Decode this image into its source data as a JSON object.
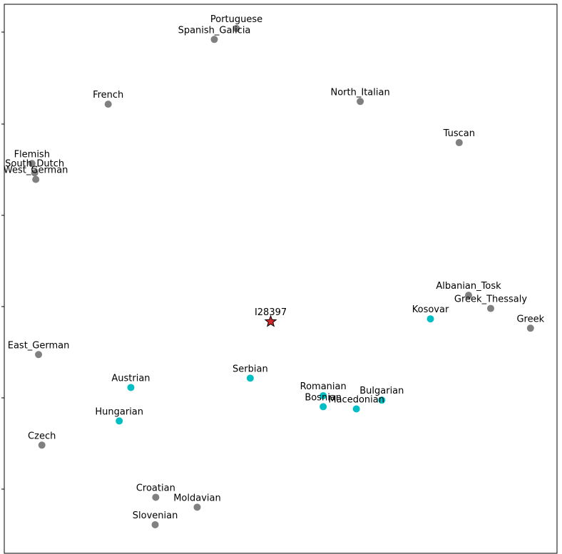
{
  "chart_data": {
    "type": "scatter",
    "title": "",
    "xlabel": "",
    "ylabel": "",
    "xlim": [
      0,
      100
    ],
    "ylim": [
      0,
      100
    ],
    "grid": false,
    "axis_tick_labels_shown": false,
    "colors": {
      "reference": "#808080",
      "highlight": "#00bfc4",
      "target_fill": "#d62728",
      "target_edge": "#000000"
    },
    "points": [
      {
        "label": "Portuguese",
        "x": 42.0,
        "y": 95.6,
        "group": "reference"
      },
      {
        "label": "Spanish_Galicia",
        "x": 38.0,
        "y": 93.6,
        "group": "reference"
      },
      {
        "label": "French",
        "x": 18.8,
        "y": 81.8,
        "group": "reference"
      },
      {
        "label": "North_Italian",
        "x": 64.4,
        "y": 82.3,
        "group": "reference"
      },
      {
        "label": "Tuscan",
        "x": 82.3,
        "y": 74.8,
        "group": "reference"
      },
      {
        "label": "Flemish",
        "x": 5.0,
        "y": 71.0,
        "group": "reference"
      },
      {
        "label": "South_Dutch",
        "x": 5.5,
        "y": 69.3,
        "group": "reference"
      },
      {
        "label": "West_German",
        "x": 5.7,
        "y": 68.1,
        "group": "reference"
      },
      {
        "label": "Albanian_Tosk",
        "x": 84.0,
        "y": 47.0,
        "group": "reference"
      },
      {
        "label": "Greek_Thessaly",
        "x": 88.0,
        "y": 44.6,
        "group": "reference"
      },
      {
        "label": "Greek",
        "x": 95.2,
        "y": 41.0,
        "group": "reference"
      },
      {
        "label": "East_German",
        "x": 6.2,
        "y": 36.2,
        "group": "reference"
      },
      {
        "label": "Czech",
        "x": 6.8,
        "y": 19.7,
        "group": "reference"
      },
      {
        "label": "Croatian",
        "x": 27.4,
        "y": 10.2,
        "group": "reference"
      },
      {
        "label": "Moldavian",
        "x": 34.9,
        "y": 8.4,
        "group": "reference"
      },
      {
        "label": "Slovenian",
        "x": 27.3,
        "y": 5.2,
        "group": "reference"
      },
      {
        "label": "Kosovar",
        "x": 77.1,
        "y": 42.7,
        "group": "highlight"
      },
      {
        "label": "Austrian",
        "x": 22.9,
        "y": 30.2,
        "group": "highlight"
      },
      {
        "label": "Serbian",
        "x": 44.5,
        "y": 31.9,
        "group": "highlight"
      },
      {
        "label": "Romanian",
        "x": 57.7,
        "y": 28.7,
        "group": "highlight"
      },
      {
        "label": "Bosnian",
        "x": 57.7,
        "y": 26.7,
        "group": "highlight"
      },
      {
        "label": "Macedonian",
        "x": 63.7,
        "y": 26.3,
        "group": "highlight"
      },
      {
        "label": "Bulgarian",
        "x": 68.3,
        "y": 27.9,
        "group": "highlight"
      },
      {
        "label": "Hungarian",
        "x": 20.8,
        "y": 24.1,
        "group": "highlight"
      },
      {
        "label": "I28397",
        "x": 48.2,
        "y": 42.2,
        "group": "target"
      }
    ]
  }
}
